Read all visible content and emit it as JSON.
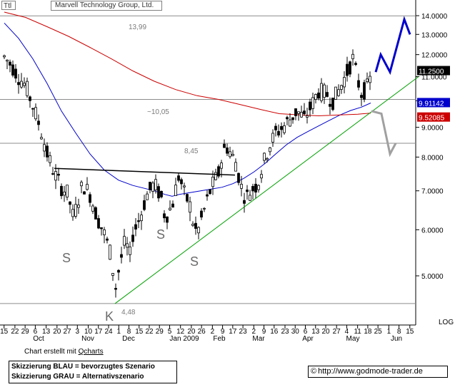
{
  "header": {
    "ttl": "Ttl",
    "stock": "Marvell Technology Group, Ltd."
  },
  "chart_data": {
    "type": "candlestick",
    "title": "Marvell Technology Group, Ltd.",
    "y_axis": {
      "side": "right",
      "scale": "log",
      "label": "LOG",
      "ticks": [
        "14.0000",
        "13.0000",
        "12.0000",
        "11.0000",
        "10.0000",
        "9.0000",
        "8.0000",
        "7.0000",
        "6.0000",
        "5.0000"
      ],
      "tick_values": [
        14,
        13,
        12,
        11,
        10,
        9,
        8,
        7,
        6,
        5
      ],
      "range": [
        4.4,
        14.5
      ]
    },
    "price_labels": [
      {
        "text": "11.2500",
        "value": 11.25,
        "bg": "#000000",
        "fg": "#ffffff"
      },
      {
        "text": "9.91142",
        "value": 9.91142,
        "bg": "#0000cc",
        "fg": "#ffffff"
      },
      {
        "text": "9.52085",
        "value": 9.52085,
        "bg": "#cc0000",
        "fg": "#ffffff"
      }
    ],
    "x_axis": {
      "day_ticks": [
        "15",
        "22",
        "29",
        "6",
        "13",
        "20",
        "27",
        "3",
        "10",
        "17",
        "24",
        "1",
        "8",
        "15",
        "22",
        "29",
        "5",
        "12",
        "20",
        "26",
        "2",
        "9",
        "17",
        "23",
        "2",
        "9",
        "16",
        "23",
        "30",
        "6",
        "13",
        "20",
        "27",
        "4",
        "11",
        "18",
        "25",
        "1",
        "8",
        "15"
      ],
      "month_labels": [
        "Oct",
        "Nov",
        "Dec",
        "Jan 2009",
        "Feb",
        "Mar",
        "Apr",
        "May",
        "Jun"
      ]
    },
    "horizontal_levels": [
      {
        "value": 13.99,
        "label": "13,99"
      },
      {
        "value": 10.05,
        "label": "~10,05"
      },
      {
        "value": 8.45,
        "label": "8,45"
      },
      {
        "value": 4.48,
        "label": "4,48"
      }
    ],
    "pattern_labels": [
      "S",
      "S",
      "S",
      "K"
    ],
    "series": [
      {
        "name": "",
        "color": "#0000cc",
        "kind": "moving-average",
        "points": [
          [
            0,
            13.6
          ],
          [
            20,
            12.8
          ],
          [
            40,
            11.8
          ],
          [
            60,
            10.7
          ],
          [
            80,
            9.6
          ],
          [
            100,
            8.8
          ],
          [
            120,
            8.1
          ],
          [
            140,
            7.6
          ],
          [
            160,
            7.3
          ],
          [
            180,
            7.15
          ],
          [
            200,
            7.05
          ],
          [
            210,
            7.0
          ],
          [
            225,
            6.9
          ],
          [
            235,
            6.85
          ],
          [
            245,
            6.9
          ],
          [
            260,
            6.95
          ],
          [
            275,
            7.0
          ],
          [
            290,
            7.05
          ],
          [
            305,
            7.1
          ],
          [
            320,
            7.2
          ],
          [
            335,
            7.35
          ],
          [
            350,
            7.55
          ],
          [
            365,
            7.8
          ],
          [
            380,
            8.1
          ],
          [
            395,
            8.4
          ],
          [
            410,
            8.65
          ],
          [
            425,
            8.85
          ],
          [
            440,
            9.05
          ],
          [
            455,
            9.25
          ],
          [
            470,
            9.45
          ],
          [
            485,
            9.62
          ],
          [
            500,
            9.75
          ],
          [
            513,
            9.91
          ]
        ]
      },
      {
        "name": "",
        "color": "#cc0000",
        "kind": "moving-average",
        "points": [
          [
            0,
            14.2
          ],
          [
            30,
            13.9
          ],
          [
            60,
            13.4
          ],
          [
            90,
            12.9
          ],
          [
            120,
            12.35
          ],
          [
            150,
            11.8
          ],
          [
            180,
            11.25
          ],
          [
            210,
            10.8
          ],
          [
            240,
            10.45
          ],
          [
            270,
            10.2
          ],
          [
            300,
            10.05
          ],
          [
            330,
            9.85
          ],
          [
            360,
            9.65
          ],
          [
            385,
            9.5
          ],
          [
            410,
            9.46
          ],
          [
            440,
            9.42
          ],
          [
            470,
            9.45
          ],
          [
            495,
            9.48
          ],
          [
            513,
            9.52
          ]
        ]
      }
    ],
    "candles_approx": [
      [
        0,
        11.9
      ],
      [
        10,
        11.5
      ],
      [
        20,
        11.0
      ],
      [
        30,
        10.6
      ],
      [
        40,
        9.8
      ],
      [
        50,
        9.0
      ],
      [
        60,
        8.1
      ],
      [
        70,
        7.5
      ],
      [
        80,
        7.1
      ],
      [
        90,
        6.9
      ],
      [
        95,
        6.3
      ],
      [
        100,
        6.5
      ],
      [
        110,
        7.2
      ],
      [
        120,
        6.9
      ],
      [
        130,
        6.3
      ],
      [
        140,
        5.9
      ],
      [
        150,
        5.4
      ],
      [
        155,
        4.7
      ],
      [
        160,
        5.1
      ],
      [
        170,
        5.8
      ],
      [
        175,
        5.3
      ],
      [
        180,
        5.9
      ],
      [
        190,
        6.3
      ],
      [
        200,
        6.9
      ],
      [
        210,
        7.2
      ],
      [
        220,
        6.8
      ],
      [
        225,
        6.3
      ],
      [
        235,
        6.6
      ],
      [
        245,
        7.5
      ],
      [
        250,
        7.0
      ],
      [
        260,
        6.6
      ],
      [
        265,
        6.1
      ],
      [
        270,
        5.9
      ],
      [
        280,
        6.5
      ],
      [
        290,
        7.1
      ],
      [
        300,
        7.5
      ],
      [
        305,
        8.0
      ],
      [
        310,
        8.4
      ],
      [
        315,
        8.2
      ],
      [
        325,
        7.8
      ],
      [
        330,
        7.2
      ],
      [
        338,
        6.8
      ],
      [
        345,
        7.0
      ],
      [
        355,
        7.2
      ],
      [
        360,
        7.6
      ],
      [
        370,
        8.3
      ],
      [
        380,
        8.8
      ],
      [
        390,
        9.0
      ],
      [
        400,
        9.3
      ],
      [
        410,
        9.6
      ],
      [
        420,
        9.3
      ],
      [
        430,
        9.8
      ],
      [
        440,
        10.4
      ],
      [
        450,
        10.3
      ],
      [
        460,
        10.0
      ],
      [
        470,
        10.5
      ],
      [
        480,
        11.2
      ],
      [
        488,
        11.8
      ],
      [
        495,
        10.8
      ],
      [
        500,
        10.3
      ],
      [
        510,
        10.6
      ],
      [
        515,
        11.25
      ]
    ],
    "trend_lines": [
      {
        "name": "neckline",
        "color": "#000000",
        "from": [
          70,
          7.65
        ],
        "to": [
          323,
          7.45
        ]
      },
      {
        "name": "uptrend",
        "color": "#00a000",
        "from": [
          155,
          4.48
        ],
        "to": [
          580,
          11.0
        ]
      }
    ],
    "scenarios": [
      {
        "label": "blue",
        "color": "#0000cc",
        "points": [
          [
            520,
            11.2
          ],
          [
            527,
            12.0
          ],
          [
            540,
            11.2
          ],
          [
            560,
            13.8
          ],
          [
            568,
            13.0
          ]
        ]
      },
      {
        "label": "gray",
        "color": "#a0a0a0",
        "points": [
          [
            514,
            9.6
          ],
          [
            528,
            9.5
          ],
          [
            540,
            8.1
          ],
          [
            548,
            8.45
          ]
        ]
      }
    ]
  },
  "footer": {
    "credit_prefix": "Chart erstellt mit ",
    "credit_link": "Qcharts",
    "legend_blue": "Skizzierung BLAU = bevorzugtes Szenario",
    "legend_gray": "Skizzierung GRAU = Alternativszenario",
    "url": "http://www.godmode-trader.de",
    "copyright_icon": "copyright-icon"
  }
}
